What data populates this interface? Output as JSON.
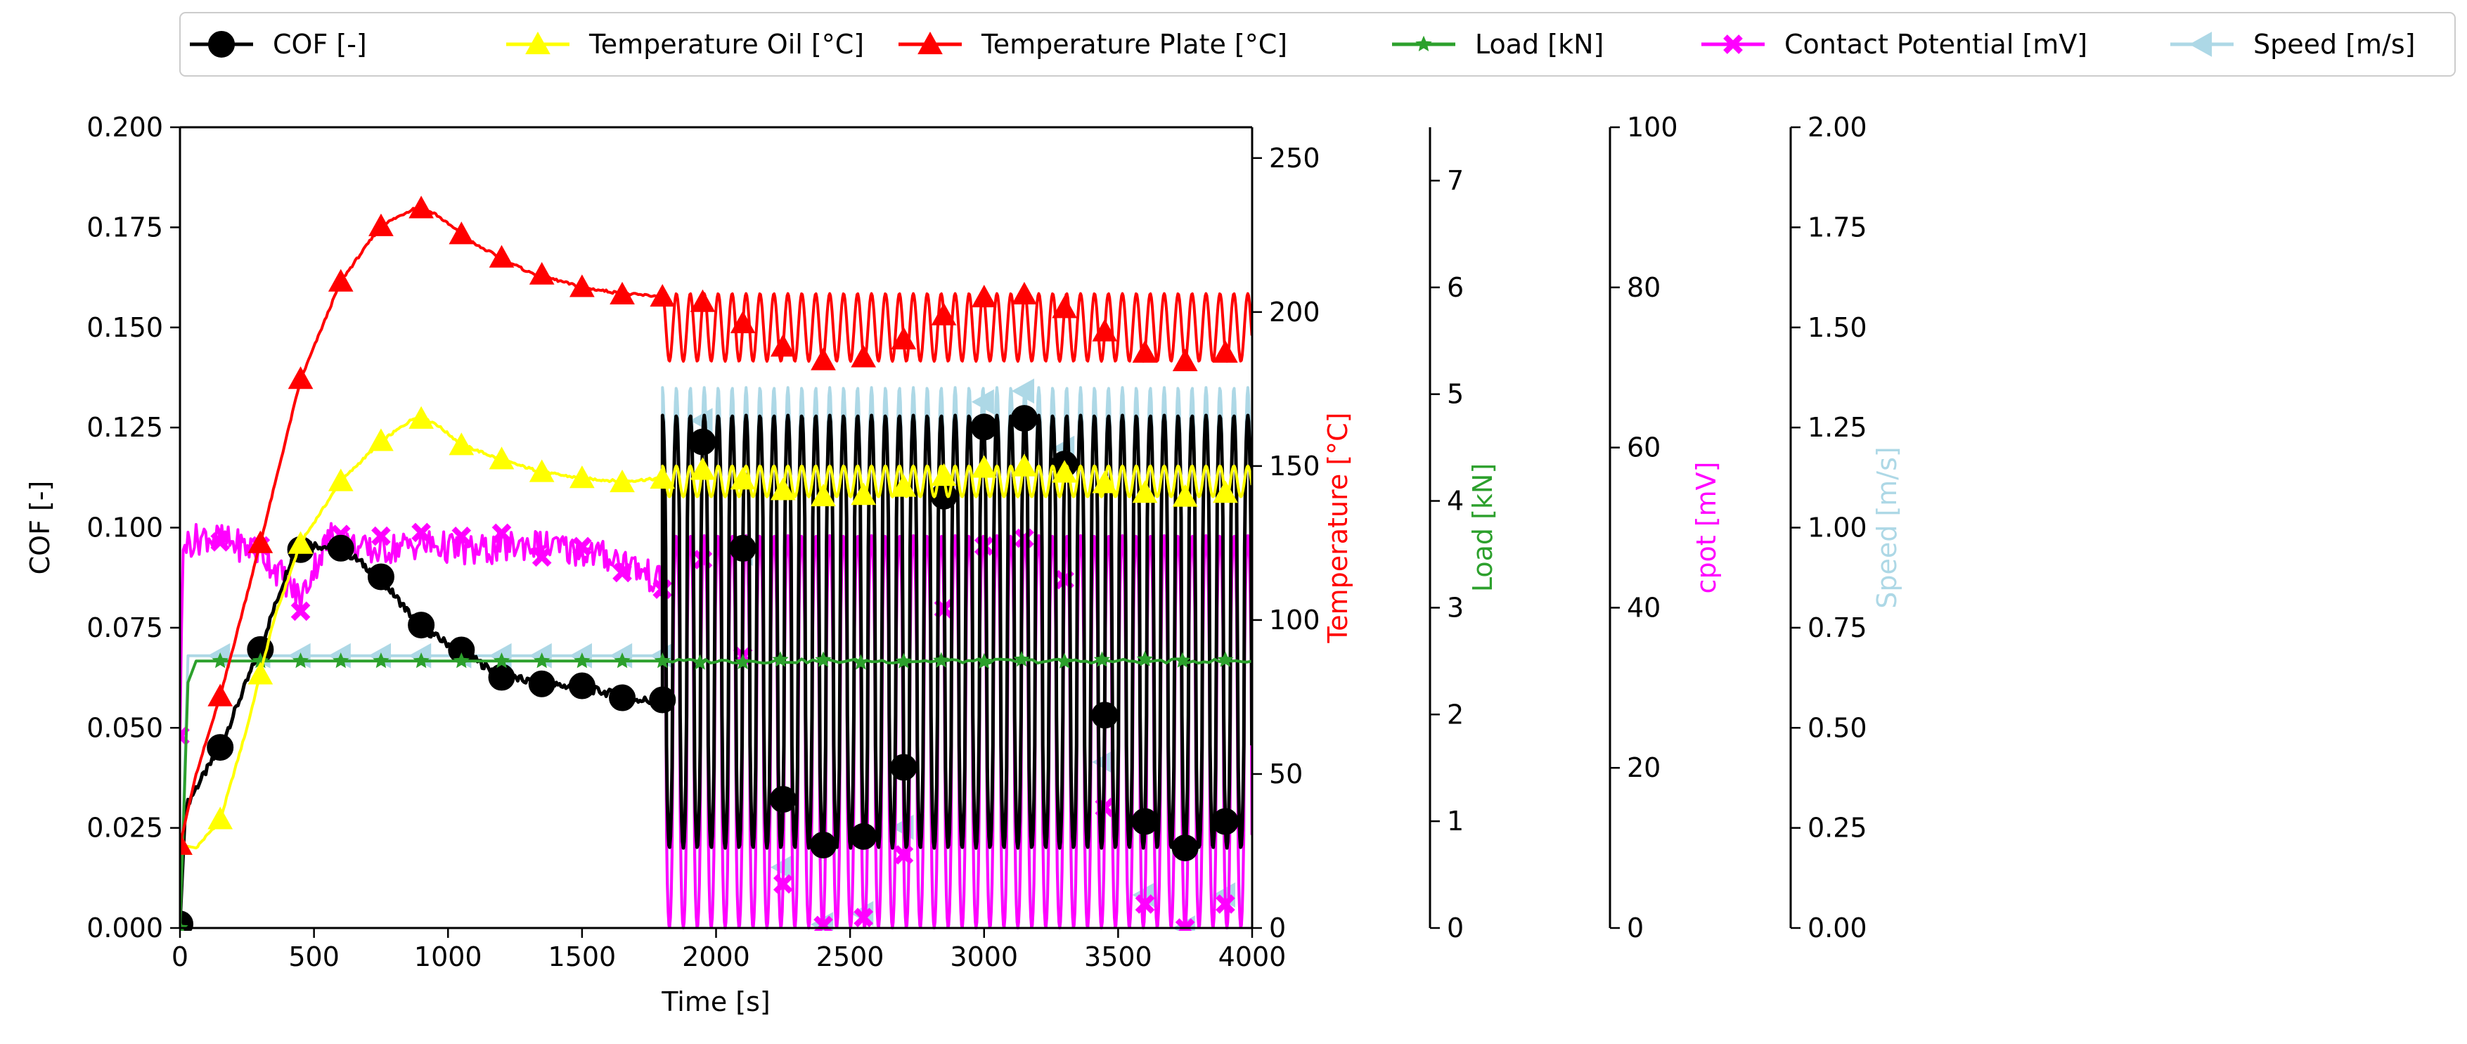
{
  "chart_data": {
    "type": "line",
    "x": {
      "label": "Time [s]",
      "lim": [
        0,
        4000
      ],
      "ticks": [
        0,
        500,
        1000,
        1500,
        2000,
        2500,
        3000,
        3500,
        4000
      ],
      "tick_labels": [
        "0",
        "500",
        "1000",
        "1500",
        "2000",
        "2500",
        "3000",
        "3500",
        "4000"
      ]
    },
    "axes": [
      {
        "id": "cof",
        "label": "COF [-]",
        "label_color": "#000000",
        "lim": [
          0,
          0.2
        ],
        "ticks": [
          0,
          0.025,
          0.05,
          0.075,
          0.1,
          0.125,
          0.15,
          0.175,
          0.2
        ],
        "tick_labels": [
          "0.000",
          "0.025",
          "0.050",
          "0.075",
          "0.100",
          "0.125",
          "0.150",
          "0.175",
          "0.200"
        ]
      },
      {
        "id": "temp",
        "label": "Temperature [°C]",
        "label_color": "#ff0000",
        "lim": [
          0,
          260
        ],
        "ticks": [
          0,
          50,
          100,
          150,
          200,
          250
        ],
        "tick_labels": [
          "0",
          "50",
          "100",
          "150",
          "200",
          "250"
        ]
      },
      {
        "id": "load",
        "label": "Load [kN]",
        "label_color": "#2ca02c",
        "lim": [
          0,
          7.5
        ],
        "ticks": [
          0,
          1,
          2,
          3,
          4,
          5,
          6,
          7
        ],
        "tick_labels": [
          "0",
          "1",
          "2",
          "3",
          "4",
          "5",
          "6",
          "7"
        ]
      },
      {
        "id": "cpot",
        "label": "cpot [mV]",
        "label_color": "#ff00ff",
        "lim": [
          0,
          100
        ],
        "ticks": [
          0,
          20,
          40,
          60,
          80,
          100
        ],
        "tick_labels": [
          "0",
          "20",
          "40",
          "60",
          "80",
          "100"
        ]
      },
      {
        "id": "speed",
        "label": "Speed [m/s]",
        "label_color": "#add8e6",
        "lim": [
          0,
          2
        ],
        "ticks": [
          0,
          0.25,
          0.5,
          0.75,
          1.0,
          1.25,
          1.5,
          1.75,
          2.0
        ],
        "tick_labels": [
          "0.00",
          "0.25",
          "0.50",
          "0.75",
          "1.00",
          "1.25",
          "1.50",
          "1.75",
          "2.00"
        ]
      }
    ],
    "series": [
      {
        "name": "COF [-]",
        "axis": "cof",
        "color": "#000000",
        "marker": "circle",
        "phase1": {
          "x": [
            0,
            20,
            60,
            150,
            300,
            420,
            480,
            560,
            640,
            740,
            900,
            1050,
            1200,
            1350,
            1500,
            1650,
            1800
          ],
          "y": [
            0.001,
            0.03,
            0.035,
            0.045,
            0.07,
            0.093,
            0.096,
            0.095,
            0.093,
            0.088,
            0.075,
            0.069,
            0.063,
            0.061,
            0.06,
            0.058,
            0.056
          ]
        },
        "phase2": {
          "start": 1800,
          "end": 4000,
          "period": 52,
          "min": 0.02,
          "max": 0.128
        }
      },
      {
        "name": "Temperature Oil [°C]",
        "axis": "temp",
        "color": "#ffff00",
        "marker": "triangle-up",
        "phase1": {
          "x": [
            0,
            60,
            150,
            250,
            350,
            450,
            600,
            750,
            880,
            950,
            1050,
            1200,
            1350,
            1500,
            1650,
            1800
          ],
          "y": [
            27,
            26,
            35,
            65,
            100,
            125,
            145,
            158,
            166,
            164,
            157,
            152,
            148,
            146,
            145,
            146
          ]
        },
        "phase2": {
          "start": 1800,
          "end": 4000,
          "period": 52,
          "min": 140,
          "max": 150
        }
      },
      {
        "name": "Temperature Plate [°C]",
        "axis": "temp",
        "color": "#ff0000",
        "marker": "triangle-up",
        "phase1": {
          "x": [
            0,
            60,
            150,
            300,
            450,
            600,
            750,
            880,
            950,
            1100,
            1300,
            1500,
            1650,
            1800
          ],
          "y": [
            27,
            50,
            75,
            125,
            178,
            210,
            228,
            234,
            232,
            222,
            213,
            208,
            206,
            205
          ]
        },
        "phase2": {
          "start": 1800,
          "end": 4000,
          "period": 52,
          "min": 184,
          "max": 206
        }
      },
      {
        "name": "Load [kN]",
        "axis": "load",
        "color": "#2ca02c",
        "marker": "star",
        "phase1": {
          "x": [
            0,
            30,
            60,
            1800
          ],
          "y": [
            0,
            2.3,
            2.5,
            2.5
          ]
        },
        "phase2": {
          "start": 1800,
          "end": 4000,
          "value": 2.5
        }
      },
      {
        "name": "Contact Potential [mV]",
        "axis": "cpot",
        "color": "#ff00ff",
        "marker": "x",
        "phase1": {
          "x": [
            0,
            10,
            20,
            100,
            200,
            300,
            380,
            450,
            500,
            560,
            620,
            700,
            900,
            1100,
            1300,
            1500,
            1650,
            1800
          ],
          "y": [
            24,
            47,
            48,
            49,
            48,
            47,
            44,
            41,
            45,
            49,
            48,
            47,
            48,
            47,
            48,
            47,
            46,
            43
          ]
        },
        "phase2": {
          "start": 1800,
          "end": 4000,
          "period": 52,
          "min": 0,
          "max": 49
        }
      },
      {
        "name": "Speed [m/s]",
        "axis": "speed",
        "color": "#add8e6",
        "marker": "triangle-left",
        "phase1": {
          "x": [
            0,
            30,
            60,
            1800
          ],
          "y": [
            0,
            0.68,
            0.68,
            0.68
          ]
        },
        "phase2": {
          "start": 1800,
          "end": 4000,
          "period": 52,
          "min": 0,
          "max": 1.35
        }
      }
    ],
    "legend": {
      "placement": "top",
      "entries": [
        "COF [-]",
        "Temperature Oil [°C]",
        "Temperature Plate [°C]",
        "Load [kN]",
        "Contact Potential [mV]",
        "Speed [m/s]"
      ]
    },
    "grid": false
  }
}
